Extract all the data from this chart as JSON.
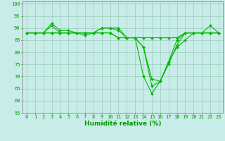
{
  "x": [
    0,
    1,
    2,
    3,
    4,
    5,
    6,
    7,
    8,
    9,
    10,
    11,
    12,
    13,
    14,
    15,
    16,
    17,
    18,
    19,
    20,
    21,
    22,
    23
  ],
  "series": [
    [
      88,
      88,
      88,
      92,
      89,
      89,
      88,
      88,
      88,
      90,
      90,
      90,
      86,
      86,
      82,
      69,
      68,
      76,
      82,
      85,
      88,
      88,
      88,
      88
    ],
    [
      88,
      88,
      88,
      88,
      88,
      88,
      88,
      88,
      88,
      88,
      88,
      86,
      86,
      86,
      82,
      66,
      68,
      75,
      83,
      88,
      88,
      88,
      91,
      88
    ],
    [
      88,
      88,
      88,
      91,
      88,
      88,
      88,
      87,
      88,
      90,
      90,
      89,
      86,
      86,
      70,
      63,
      68,
      76,
      85,
      88,
      88,
      88,
      88,
      88
    ],
    [
      88,
      88,
      88,
      88,
      88,
      88,
      88,
      88,
      88,
      88,
      88,
      86,
      86,
      86,
      86,
      86,
      86,
      86,
      86,
      88,
      88,
      88,
      88,
      88
    ]
  ],
  "line_color": "#00bb00",
  "marker": "D",
  "markersize": 2,
  "linewidth": 0.8,
  "xlabel": "Humidité relative (%)",
  "xlabel_color": "#009900",
  "xlabel_fontsize": 6.5,
  "xlim": [
    -0.5,
    23.5
  ],
  "ylim": [
    55,
    101
  ],
  "yticks": [
    55,
    60,
    65,
    70,
    75,
    80,
    85,
    90,
    95,
    100
  ],
  "xticks": [
    0,
    1,
    2,
    3,
    4,
    5,
    6,
    7,
    8,
    9,
    10,
    11,
    12,
    13,
    14,
    15,
    16,
    17,
    18,
    19,
    20,
    21,
    22,
    23
  ],
  "grid_color": "#99ccbb",
  "background_color": "#c8ece8",
  "tick_color": "#009900",
  "tick_fontsize": 5.0,
  "spine_color": "#888888"
}
